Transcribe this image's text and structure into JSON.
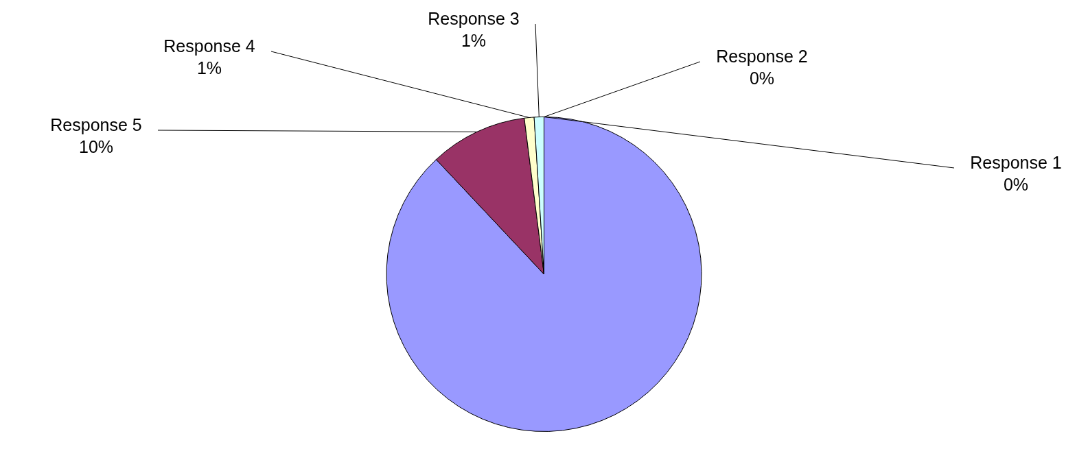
{
  "chart_data": {
    "type": "pie",
    "categories": [
      "Response 1",
      null,
      "Response 5",
      "Response 4",
      "Response 3",
      "Response 2"
    ],
    "values": [
      0,
      88,
      10,
      1,
      1,
      0
    ],
    "colors": [
      "#99ccff",
      "#9999ff",
      "#993366",
      "#ffffcc",
      "#ccffff",
      "#660066"
    ],
    "value_labels": [
      "0%",
      null,
      "10%",
      "1%",
      "1%",
      "0%"
    ],
    "legend": false
  }
}
